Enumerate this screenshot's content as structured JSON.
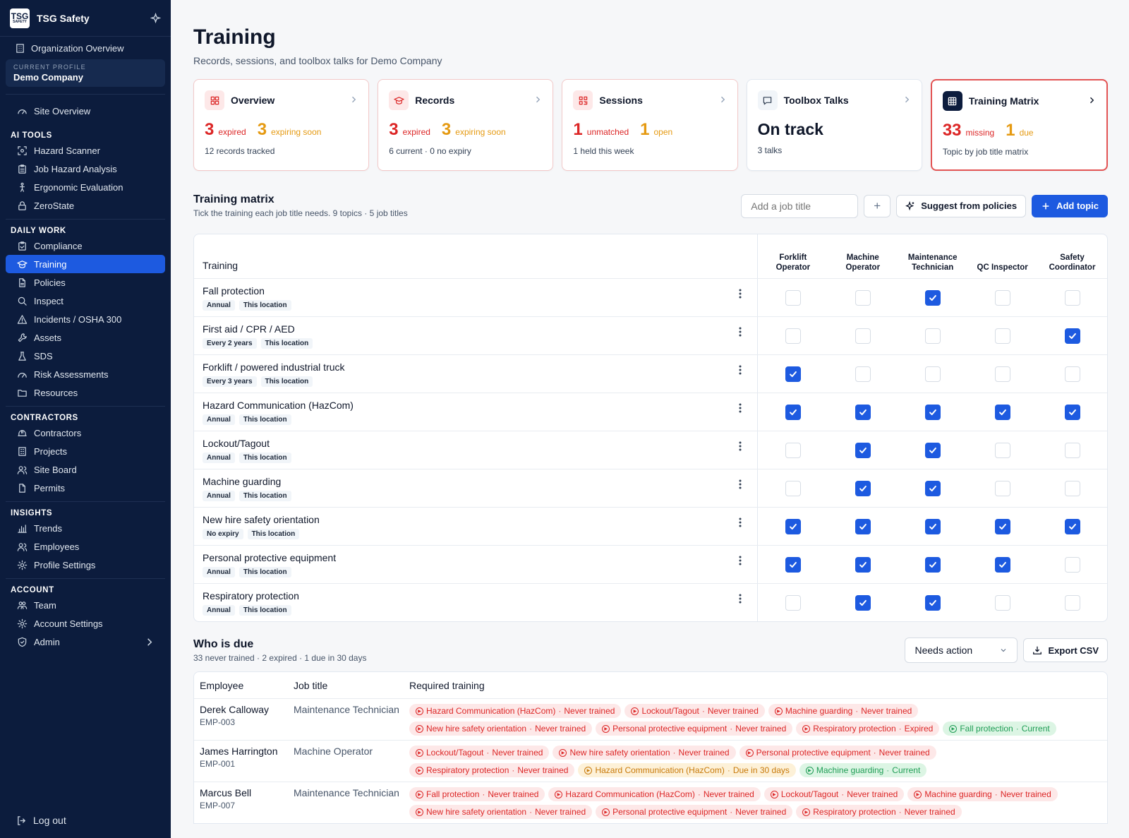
{
  "brand": "TSG Safety",
  "logo": {
    "main": "TSG",
    "small": "SAFETY"
  },
  "sidebar": {
    "org_overview": "Organization Overview",
    "profile_label": "CURRENT PROFILE",
    "profile_value": "Demo Company",
    "site_overview": "Site Overview",
    "sections": [
      {
        "title": "AI TOOLS",
        "items": [
          {
            "label": "Hazard Scanner",
            "icon": "scan-icon"
          },
          {
            "label": "Job Hazard Analysis",
            "icon": "clipboard-icon"
          },
          {
            "label": "Ergonomic Evaluation",
            "icon": "person-icon"
          },
          {
            "label": "ZeroState",
            "icon": "lock-icon"
          }
        ]
      },
      {
        "title": "DAILY WORK",
        "items": [
          {
            "label": "Compliance",
            "icon": "clipboard-check-icon"
          },
          {
            "label": "Training",
            "icon": "graduation-cap-icon",
            "active": true
          },
          {
            "label": "Policies",
            "icon": "file-icon"
          },
          {
            "label": "Inspect",
            "icon": "search-icon"
          },
          {
            "label": "Incidents / OSHA 300",
            "icon": "warning-icon"
          },
          {
            "label": "Assets",
            "icon": "wrench-icon"
          },
          {
            "label": "SDS",
            "icon": "flask-icon"
          },
          {
            "label": "Risk Assessments",
            "icon": "gauge-icon"
          },
          {
            "label": "Resources",
            "icon": "folder-icon"
          }
        ]
      },
      {
        "title": "CONTRACTORS",
        "items": [
          {
            "label": "Contractors",
            "icon": "hard-hat-icon"
          },
          {
            "label": "Projects",
            "icon": "building-icon"
          },
          {
            "label": "Site Board",
            "icon": "users-icon"
          },
          {
            "label": "Permits",
            "icon": "document-icon"
          }
        ]
      },
      {
        "title": "INSIGHTS",
        "items": [
          {
            "label": "Trends",
            "icon": "bar-chart-icon"
          },
          {
            "label": "Employees",
            "icon": "users-icon"
          },
          {
            "label": "Profile Settings",
            "icon": "gear-icon"
          }
        ]
      },
      {
        "title": "ACCOUNT",
        "items": [
          {
            "label": "Team",
            "icon": "team-icon"
          },
          {
            "label": "Account Settings",
            "icon": "gear-icon"
          },
          {
            "label": "Admin",
            "icon": "shield-icon",
            "chevron": true
          }
        ]
      }
    ],
    "logout": "Log out"
  },
  "page": {
    "title": "Training",
    "subtitle": "Records, sessions, and toolbox talks for Demo Company"
  },
  "cards": [
    {
      "title": "Overview",
      "style": "alert",
      "icon": "grid-icon",
      "stats": [
        {
          "n": "3",
          "label": "expired",
          "color": "red"
        },
        {
          "n": "3",
          "label": "expiring soon",
          "color": "amber"
        }
      ],
      "foot": "12 records tracked"
    },
    {
      "title": "Records",
      "style": "alert",
      "icon": "graduation-cap-icon",
      "stats": [
        {
          "n": "3",
          "label": "expired",
          "color": "red"
        },
        {
          "n": "3",
          "label": "expiring soon",
          "color": "amber"
        }
      ],
      "foot": "6 current · 0 no expiry"
    },
    {
      "title": "Sessions",
      "style": "alert",
      "icon": "qr-icon",
      "stats": [
        {
          "n": "1",
          "label": "unmatched",
          "color": "red"
        },
        {
          "n": "1",
          "label": "open",
          "color": "amber"
        }
      ],
      "foot": "1 held this week"
    },
    {
      "title": "Toolbox Talks",
      "style": "plain",
      "icon": "chat-icon",
      "headline": "On track",
      "foot": "3 talks"
    },
    {
      "title": "Training Matrix",
      "style": "highlight",
      "icon": "table-icon",
      "stats": [
        {
          "n": "33",
          "label": "missing",
          "color": "red"
        },
        {
          "n": "1",
          "label": "due",
          "color": "amber"
        }
      ],
      "foot": "Topic by job title matrix"
    }
  ],
  "matrix": {
    "title": "Training matrix",
    "subtitle": "Tick the training each job title needs. 9 topics · 5 job titles",
    "job_input_placeholder": "Add a job title",
    "add_symbol": "+",
    "suggest_label": "Suggest from policies",
    "add_topic_label": "Add topic",
    "col_header": "Training",
    "job_titles": [
      [
        "Forklift",
        "Operator"
      ],
      [
        "Machine",
        "Operator"
      ],
      [
        "Maintenance",
        "Technician"
      ],
      [
        "QC Inspector"
      ],
      [
        "Safety",
        "Coordinator"
      ]
    ],
    "rows": [
      {
        "name": "Fall protection",
        "tags": [
          "Annual",
          "This location"
        ],
        "checks": [
          false,
          false,
          true,
          false,
          false
        ]
      },
      {
        "name": "First aid / CPR / AED",
        "tags": [
          "Every 2 years",
          "This location"
        ],
        "checks": [
          false,
          false,
          false,
          false,
          true
        ]
      },
      {
        "name": "Forklift / powered industrial truck",
        "tags": [
          "Every 3 years",
          "This location"
        ],
        "checks": [
          true,
          false,
          false,
          false,
          false
        ]
      },
      {
        "name": "Hazard Communication (HazCom)",
        "tags": [
          "Annual",
          "This location"
        ],
        "checks": [
          true,
          true,
          true,
          true,
          true
        ]
      },
      {
        "name": "Lockout/Tagout",
        "tags": [
          "Annual",
          "This location"
        ],
        "checks": [
          false,
          true,
          true,
          false,
          false
        ]
      },
      {
        "name": "Machine guarding",
        "tags": [
          "Annual",
          "This location"
        ],
        "checks": [
          false,
          true,
          true,
          false,
          false
        ]
      },
      {
        "name": "New hire safety orientation",
        "tags": [
          "No expiry",
          "This location"
        ],
        "checks": [
          true,
          true,
          true,
          true,
          true
        ]
      },
      {
        "name": "Personal protective equipment",
        "tags": [
          "Annual",
          "This location"
        ],
        "checks": [
          true,
          true,
          true,
          true,
          false
        ]
      },
      {
        "name": "Respiratory protection",
        "tags": [
          "Annual",
          "This location"
        ],
        "checks": [
          false,
          true,
          true,
          false,
          false
        ]
      }
    ]
  },
  "due": {
    "title": "Who is due",
    "subtitle": "33 never trained · 2 expired · 1 due in 30 days",
    "filter_value": "Needs action",
    "export_label": "Export CSV",
    "headers": {
      "employee": "Employee",
      "job": "Job title",
      "required": "Required training"
    },
    "rows": [
      {
        "name": "Derek Calloway",
        "id": "EMP-003",
        "job": "Maintenance Technician",
        "items": [
          {
            "topic": "Hazard Communication (HazCom)",
            "status": "Never trained",
            "kind": "never"
          },
          {
            "topic": "Lockout/Tagout",
            "status": "Never trained",
            "kind": "never"
          },
          {
            "topic": "Machine guarding",
            "status": "Never trained",
            "kind": "never"
          },
          {
            "topic": "New hire safety orientation",
            "status": "Never trained",
            "kind": "never"
          },
          {
            "topic": "Personal protective equipment",
            "status": "Never trained",
            "kind": "never"
          },
          {
            "topic": "Respiratory protection",
            "status": "Expired",
            "kind": "never"
          },
          {
            "topic": "Fall protection",
            "status": "Current",
            "kind": "current"
          }
        ]
      },
      {
        "name": "James Harrington",
        "id": "EMP-001",
        "job": "Machine Operator",
        "items": [
          {
            "topic": "Lockout/Tagout",
            "status": "Never trained",
            "kind": "never"
          },
          {
            "topic": "New hire safety orientation",
            "status": "Never trained",
            "kind": "never"
          },
          {
            "topic": "Personal protective equipment",
            "status": "Never trained",
            "kind": "never"
          },
          {
            "topic": "Respiratory protection",
            "status": "Never trained",
            "kind": "never"
          },
          {
            "topic": "Hazard Communication (HazCom)",
            "status": "Due in 30 days",
            "kind": "due"
          },
          {
            "topic": "Machine guarding",
            "status": "Current",
            "kind": "current"
          }
        ]
      },
      {
        "name": "Marcus Bell",
        "id": "EMP-007",
        "job": "Maintenance Technician",
        "items": [
          {
            "topic": "Fall protection",
            "status": "Never trained",
            "kind": "never"
          },
          {
            "topic": "Hazard Communication (HazCom)",
            "status": "Never trained",
            "kind": "never"
          },
          {
            "topic": "Lockout/Tagout",
            "status": "Never trained",
            "kind": "never"
          },
          {
            "topic": "Machine guarding",
            "status": "Never trained",
            "kind": "never"
          },
          {
            "topic": "New hire safety orientation",
            "status": "Never trained",
            "kind": "never"
          },
          {
            "topic": "Personal protective equipment",
            "status": "Never trained",
            "kind": "never"
          },
          {
            "topic": "Respiratory protection",
            "status": "Never trained",
            "kind": "never"
          }
        ]
      }
    ]
  },
  "colors": {
    "sidebar_bg": "#0c1c3d",
    "accent": "#1d5ae0",
    "danger": "#dc2626",
    "warning": "#e59a12",
    "success": "#1f9d55"
  }
}
